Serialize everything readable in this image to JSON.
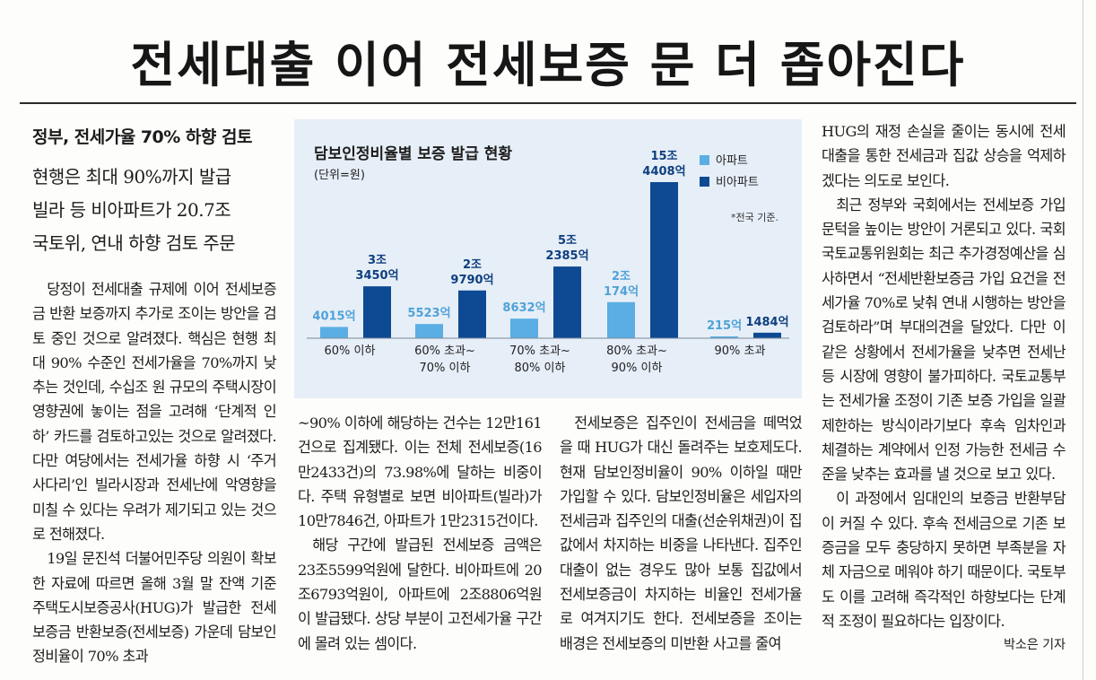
{
  "headline": "전세대출 이어 전세보증 문 더 좁아진다",
  "subheads": [
    "정부, 전세가율 70% 하향 검토",
    "현행은 최대 90%까지 발급",
    "빌라 등 비아파트가 20.7조",
    "국토위, 연내 하향 검토 주문"
  ],
  "columns": {
    "col1": [
      "당정이 전세대출 규제에 이어 전세보증금 반환 보증까지 추가로 조이는 방안을 검토 중인 것으로 알려졌다. 핵심은 현행 최대 90% 수준인 전세가율을 70%까지 낮추는 것인데, 수십조 원 규모의 주택시장이 영향권에 놓이는 점을 고려해 ‘단계적 인하’ 카드를 검토하고있는 것으로 알려졌다. 다만 여당에서는 전세가율 하향 시 ‘주거 사다리’인 빌라시장과 전세난에 악영향을 미칠 수 있다는 우려가 제기되고 있는 것으로 전해졌다.",
      "19일 문진석 더불어민주당 의원이 확보한 자료에 따르면 올해 3월 말 잔액 기준 주택도시보증공사(HUG)가 발급한 전세보증금 반환보증(전세보증) 가운데 담보인정비율이 70% 초과"
    ],
    "col2": [
      "~90% 이하에 해당하는 건수는 12만161건으로 집계됐다. 이는 전체 전세보증(16만2433건)의 73.98%에 달하는 비중이다. 주택 유형별로 보면 비아파트(빌라)가 10만7846건, 아파트가 1만2315건이다.",
      "해당 구간에 발급된 전세보증 금액은 23조5599억원에 달한다. 비아파트에 20조6793억원이, 아파트에 2조8806억원이 발급됐다. 상당 부분이 고전세가율 구간에 몰려 있는 셈이다."
    ],
    "col3": [
      "전세보증은 집주인이 전세금을 떼먹었을 때 HUG가 대신 돌려주는 보호제도다. 현재 담보인정비율이 90% 이하일 때만 가입할 수 있다. 담보인정비율은 세입자의 전세금과 집주인의 대출(선순위채권)이 집값에서 차지하는 비중을 나타낸다. 집주인 대출이 없는 경우도 많아 보통 집값에서 전세보증금이 차지하는 비율인 전세가율로 여겨지기도 한다. 전세보증을 조이는 배경은 전세보증의 미반환 사고를 줄여"
    ],
    "col4": [
      "HUG의 재정 손실을 줄이는 동시에 전세대출을 통한 전세금과 집값 상승을 억제하겠다는 의도로 보인다.",
      "최근 정부와 국회에서는 전세보증 가입 문턱을 높이는 방안이 거론되고 있다. 국회 국토교통위원회는 최근 추가경정예산을 심사하면서 “전세반환보증금 가입 요건을 전세가율 70%로 낮춰 연내 시행하는 방안을 검토하라”며 부대의견을 달았다. 다만 이 같은 상황에서 전세가율을 낮추면 전세난 등 시장에 영향이 불가피하다. 국토교통부는 전세가율 조정이 기존 보증 가입을 일괄 제한하는 방식이라기보다 후속 임차인과 체결하는 계약에서 인정 가능한 전세금 수준을 낮추는 효과를 낼 것으로 보고 있다.",
      "이 과정에서 임대인의 보증금 반환부담이 커질 수 있다. 후속 전세금으로 기존 보증금을 모두 충당하지 못하면 부족분을 자체 자금으로 메워야 하기 때문이다. 국토부도 이를 고려해 즉각적인 하향보다는 단계적 조정이 필요하다는 입장이다."
    ]
  },
  "byline": "박소은 기자",
  "chart_data": {
    "type": "bar",
    "title": "담보인정비율별 보증 발급 현황",
    "unit": "(단위=원)",
    "note": "*전국 기준.",
    "categories": [
      [
        "60% 이하"
      ],
      [
        "60% 초과~",
        "70% 이하"
      ],
      [
        "70% 초과~",
        "80% 이하"
      ],
      [
        "80% 초과~",
        "90% 이하"
      ],
      [
        "90% 초과"
      ]
    ],
    "series": [
      {
        "name": "아파트",
        "color": "#5aaee3",
        "values": [
          4015,
          5523,
          8632,
          20174,
          215
        ],
        "labels": [
          [
            "4015억"
          ],
          [
            "5523억"
          ],
          [
            "8632억"
          ],
          [
            "2조",
            "174억"
          ],
          [
            "215억"
          ]
        ]
      },
      {
        "name": "비아파트",
        "color": "#0d4a93",
        "values": [
          33450,
          29790,
          52385,
          154408,
          1484
        ],
        "labels": [
          [
            "3조",
            "3450억"
          ],
          [
            "2조",
            "9790억"
          ],
          [
            "5조",
            "2385억"
          ],
          [
            "15조",
            "4408억"
          ],
          [
            "1484억"
          ]
        ]
      }
    ]
  }
}
